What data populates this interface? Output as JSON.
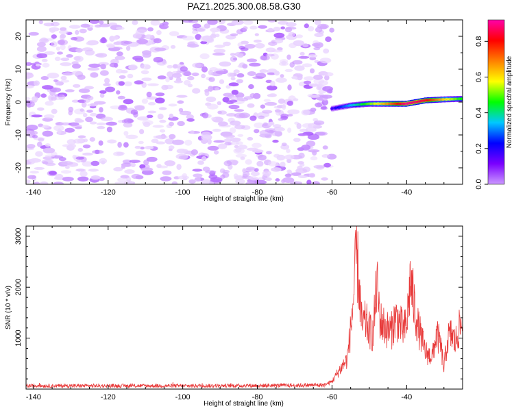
{
  "page_title": "PAZ1.2025.300.08.58.G30",
  "chart_data": [
    {
      "type": "heatmap",
      "title": "PAZ1.2025.300.08.58.G30",
      "xlabel": "Height of straight line (km)",
      "ylabel": "Frequency (Hz)",
      "xlim": [
        -142,
        -25
      ],
      "ylim": [
        -25,
        25
      ],
      "xticks": [
        -140,
        -120,
        -100,
        -80,
        -60,
        -40
      ],
      "yticks": [
        -20,
        -10,
        0,
        10,
        20
      ],
      "colorbar": {
        "label": "Normalized spectral amplitude",
        "range": [
          0,
          0.92
        ],
        "ticks": [
          0.0,
          0.2,
          0.4,
          0.6,
          0.8
        ],
        "colors": [
          "#ffffff",
          "#cc99ff",
          "#7a00ff",
          "#0000ff",
          "#00c8ff",
          "#00ff00",
          "#ffff00",
          "#ff8000",
          "#ff0000",
          "#ff00aa"
        ]
      },
      "description_regions": {
        "noise_region_x": [
          -142,
          -60
        ],
        "noise_amplitude_max": 0.15,
        "signal_track": {
          "x": [
            -60,
            -55,
            -50,
            -45,
            -40,
            -35,
            -30,
            -25
          ],
          "y": [
            -2,
            -1,
            -0.5,
            -0.5,
            -0.5,
            0.5,
            0.8,
            1
          ],
          "amplitude": [
            0.25,
            0.4,
            0.55,
            0.7,
            0.9,
            0.85,
            0.65,
            0.5
          ]
        }
      }
    },
    {
      "type": "line",
      "xlabel": "Height of straight line (km)",
      "ylabel": "SNR (10 * v/v)",
      "xlim": [
        -142,
        -25
      ],
      "ylim": [
        0,
        3200
      ],
      "xticks": [
        -140,
        -120,
        -100,
        -80,
        -60,
        -40
      ],
      "yticks": [
        1000,
        2000,
        3000
      ],
      "color": "#e83a3a",
      "envelope": {
        "x": [
          -142,
          -100,
          -70,
          -62,
          -60,
          -58,
          -56,
          -55,
          -54,
          -53.5,
          -53,
          -52,
          -51,
          -50,
          -49,
          -48,
          -47,
          -46,
          -45,
          -44,
          -43,
          -42,
          -41,
          -40,
          -39,
          -38,
          -37,
          -36,
          -35,
          -34,
          -33,
          -32,
          -31,
          -30,
          -29,
          -28,
          -27,
          -26,
          -25
        ],
        "y": [
          80,
          80,
          90,
          100,
          180,
          450,
          700,
          1400,
          2400,
          3200,
          2800,
          1500,
          1600,
          1400,
          1300,
          2500,
          1600,
          1500,
          1400,
          1400,
          1700,
          1600,
          1400,
          1500,
          2600,
          2000,
          1500,
          1200,
          900,
          800,
          800,
          1300,
          1100,
          500,
          1200,
          1300,
          1100,
          1400,
          1600
        ]
      }
    }
  ]
}
